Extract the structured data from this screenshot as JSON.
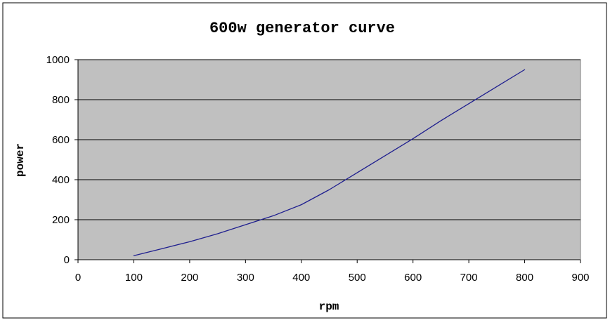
{
  "chart_data": {
    "type": "line",
    "title": "600w generator curve",
    "xlabel": "rpm",
    "ylabel": "power",
    "xlim": [
      0,
      900
    ],
    "ylim": [
      0,
      1000
    ],
    "x_ticks": [
      "0",
      "100",
      "200",
      "300",
      "400",
      "500",
      "600",
      "700",
      "800",
      "900"
    ],
    "y_ticks": [
      "0",
      "200",
      "400",
      "600",
      "800",
      "1000"
    ],
    "grid": "horizontal",
    "plot_background": "#c0c0c0",
    "line_color": "#1f1f8f",
    "series": [
      {
        "name": "",
        "x": [
          100,
          150,
          200,
          250,
          300,
          350,
          400,
          450,
          500,
          550,
          600,
          650,
          700,
          750,
          800
        ],
        "y": [
          20,
          55,
          90,
          130,
          175,
          220,
          275,
          350,
          435,
          520,
          605,
          695,
          780,
          865,
          950
        ]
      }
    ]
  }
}
